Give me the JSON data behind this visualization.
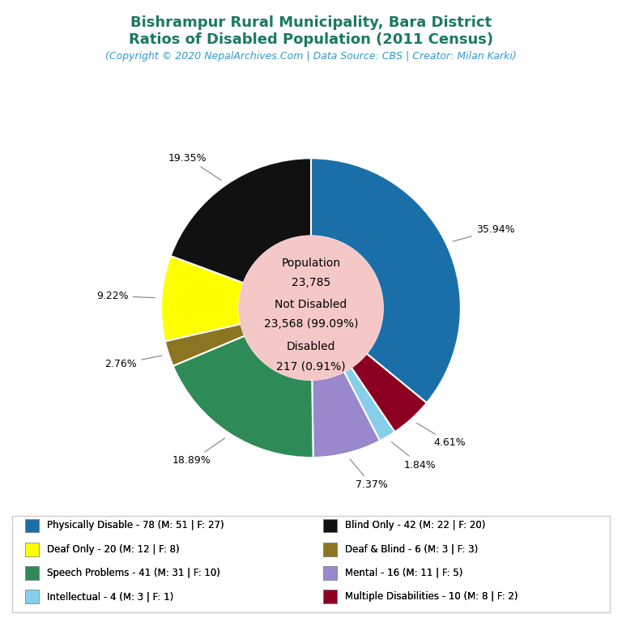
{
  "title_line1": "Bishrampur Rural Municipality, Bara District",
  "title_line2": "Ratios of Disabled Population (2011 Census)",
  "subtitle": "(Copyright © 2020 NepalArchives.Com | Data Source: CBS | Creator: Milan Karki)",
  "title_color": "#1a7a5e",
  "subtitle_color": "#3399cc",
  "center_circle_color": "#f5c8c8",
  "slices": [
    {
      "label": "Physically Disable - 78 (M: 51 | F: 27)",
      "value": 78,
      "pct": "35.94%",
      "color": "#1a6fa8"
    },
    {
      "label": "Multiple Disabilities - 10 (M: 8 | F: 2)",
      "value": 10,
      "pct": "4.61%",
      "color": "#8b0020"
    },
    {
      "label": "Intellectual - 4 (M: 3 | F: 1)",
      "value": 4,
      "pct": "1.84%",
      "color": "#87ceeb"
    },
    {
      "label": "Mental - 16 (M: 11 | F: 5)",
      "value": 16,
      "pct": "7.37%",
      "color": "#9988cc"
    },
    {
      "label": "Speech Problems - 41 (M: 31 | F: 10)",
      "value": 41,
      "pct": "18.89%",
      "color": "#2e8b57"
    },
    {
      "label": "Deaf & Blind - 6 (M: 3 | F: 3)",
      "value": 6,
      "pct": "2.76%",
      "color": "#8b7520"
    },
    {
      "label": "Deaf Only - 20 (M: 12 | F: 8)",
      "value": 20,
      "pct": "9.22%",
      "color": "#ffff00"
    },
    {
      "label": "Blind Only - 42 (M: 22 | F: 20)",
      "value": 42,
      "pct": "19.35%",
      "color": "#111111"
    }
  ],
  "legend_items_left": [
    {
      "label": "Physically Disable - 78 (M: 51 | F: 27)",
      "color": "#1a6fa8"
    },
    {
      "label": "Deaf Only - 20 (M: 12 | F: 8)",
      "color": "#ffff00"
    },
    {
      "label": "Speech Problems - 41 (M: 31 | F: 10)",
      "color": "#2e8b57"
    },
    {
      "label": "Intellectual - 4 (M: 3 | F: 1)",
      "color": "#87ceeb"
    }
  ],
  "legend_items_right": [
    {
      "label": "Blind Only - 42 (M: 22 | F: 20)",
      "color": "#111111"
    },
    {
      "label": "Deaf & Blind - 6 (M: 3 | F: 3)",
      "color": "#8b7520"
    },
    {
      "label": "Mental - 16 (M: 11 | F: 5)",
      "color": "#9988cc"
    },
    {
      "label": "Multiple Disabilities - 10 (M: 8 | F: 2)",
      "color": "#8b0020"
    }
  ],
  "bg_color": "#ffffff"
}
